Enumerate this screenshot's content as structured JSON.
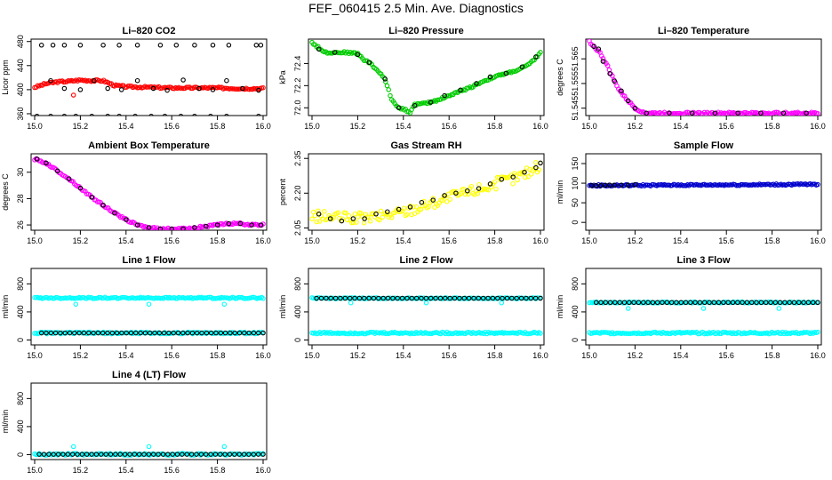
{
  "page_title": "FEF_060415  2.5 Min. Ave. Diagnostics",
  "colors": {
    "red": "#ff0000",
    "green": "#00cc00",
    "magenta": "#ff00ff",
    "yellow": "#ffff00",
    "blue": "#0000cc",
    "cyan": "#00ffff",
    "black": "#000000"
  },
  "chart_data": [
    {
      "id": "co2",
      "type": "scatter",
      "title": "Li–820 CO2",
      "xlabel": "",
      "ylabel": "Licor ppm",
      "xlim": [
        15.0,
        16.0
      ],
      "ylim": [
        357,
        484
      ],
      "xticks": [
        "15.0",
        "15.2",
        "15.4",
        "15.6",
        "15.8",
        "16.0"
      ],
      "yticks": [
        360,
        400,
        440,
        480
      ],
      "series": [
        {
          "name": "ambient",
          "color": "red",
          "symbol": "o",
          "dense": true,
          "x": [
            15.0,
            15.05,
            15.1,
            15.15,
            15.2,
            15.25,
            15.3,
            15.35,
            15.4,
            15.5,
            15.6,
            15.7,
            15.8,
            15.9,
            16.0
          ],
          "y": [
            404,
            410,
            413,
            414,
            416,
            415,
            415,
            407,
            405,
            404,
            403,
            403,
            403,
            402,
            402
          ]
        },
        {
          "name": "ambient outlier",
          "color": "red",
          "symbol": "o",
          "x": [
            15.17
          ],
          "y": [
            391
          ]
        },
        {
          "name": "samples",
          "color": "black",
          "symbol": "o",
          "sparse": true,
          "x": [
            15.07,
            15.13,
            15.2,
            15.26,
            15.32,
            15.38,
            15.45,
            15.52,
            15.58,
            15.65,
            15.72,
            15.78,
            15.84,
            15.91,
            15.98
          ],
          "y": [
            415,
            402,
            400,
            415,
            402,
            400,
            415,
            402,
            399,
            416,
            402,
            400,
            415,
            402,
            399
          ]
        },
        {
          "name": "high cal",
          "color": "black",
          "symbol": "o",
          "x": [
            15.03,
            15.08,
            15.13,
            15.2,
            15.3,
            15.37,
            15.45,
            15.55,
            15.62,
            15.7,
            15.78,
            15.85,
            15.97,
            15.99
          ],
          "y": [
            474,
            474,
            474,
            474,
            474,
            474,
            474,
            474,
            474,
            474,
            474,
            474,
            474,
            474
          ]
        },
        {
          "name": "zero cal",
          "color": "black",
          "symbol": "o",
          "x": [
            15.01,
            15.07,
            15.13,
            15.18,
            15.25,
            15.32,
            15.37,
            15.44,
            15.51,
            15.57,
            15.64,
            15.7,
            15.77,
            15.84,
            15.98
          ],
          "y": [
            356,
            356,
            356,
            356,
            356,
            356,
            356,
            356,
            356,
            356,
            356,
            356,
            356,
            356,
            356
          ]
        }
      ]
    },
    {
      "id": "pressure",
      "type": "scatter",
      "title": "Li–820 Pressure",
      "xlabel": "",
      "ylabel": "kPa",
      "xlim": [
        15.0,
        16.0
      ],
      "ylim": [
        71.93,
        72.62
      ],
      "xticks": [
        "15.0",
        "15.2",
        "15.4",
        "15.6",
        "15.8",
        "16.0"
      ],
      "yticks": [
        "72.0",
        "72.2",
        "72.4"
      ],
      "ytick_values": [
        72.0,
        72.2,
        72.4
      ],
      "series": [
        {
          "name": "pressure",
          "color": "green",
          "symbol": "o",
          "dense": true,
          "x": [
            15.0,
            15.03,
            15.06,
            15.1,
            15.15,
            15.2,
            15.23,
            15.25,
            15.28,
            15.3,
            15.32,
            15.35,
            15.38,
            15.4,
            15.43,
            15.45,
            15.5,
            15.55,
            15.6,
            15.65,
            15.7,
            15.75,
            15.8,
            15.85,
            15.9,
            15.95,
            15.98,
            16.0
          ],
          "y": [
            72.59,
            72.54,
            72.5,
            72.5,
            72.5,
            72.49,
            72.43,
            72.41,
            72.35,
            72.31,
            72.25,
            72.07,
            72.0,
            71.99,
            71.96,
            72.03,
            72.04,
            72.07,
            72.11,
            72.15,
            72.19,
            72.24,
            72.28,
            72.31,
            72.34,
            72.39,
            72.45,
            72.5
          ]
        },
        {
          "name": "samples",
          "color": "black",
          "symbol": "o",
          "sparse": true,
          "x": [
            15.03,
            15.1,
            15.2,
            15.25,
            15.32,
            15.38,
            15.45,
            15.52,
            15.58,
            15.65,
            15.72,
            15.78,
            15.85,
            15.92,
            15.98
          ],
          "y": [
            72.53,
            72.5,
            72.48,
            72.41,
            72.26,
            72.0,
            72.02,
            72.05,
            72.11,
            72.16,
            72.22,
            72.28,
            72.31,
            72.37,
            72.46
          ]
        }
      ]
    },
    {
      "id": "licor_temp",
      "type": "scatter",
      "title": "Li–820 Temperature",
      "xlabel": "",
      "ylabel": "degrees C",
      "xlim": [
        15.0,
        16.0
      ],
      "ylim": [
        51.542,
        51.573
      ],
      "xticks": [
        "15.0",
        "15.2",
        "15.4",
        "15.6",
        "15.8",
        "16.0"
      ],
      "yticks": [
        "51.545",
        "51.555",
        "51.565"
      ],
      "ytick_values": [
        51.545,
        51.555,
        51.565
      ],
      "series": [
        {
          "name": "temperature",
          "color": "magenta",
          "symbol": "o",
          "dense": true,
          "x": [
            15.0,
            15.02,
            15.05,
            15.08,
            15.1,
            15.12,
            15.15,
            15.18,
            15.2,
            15.22,
            15.25,
            15.3,
            15.4,
            15.5,
            15.6,
            15.7,
            15.8,
            15.9,
            16.0
          ],
          "y": [
            51.572,
            51.57,
            51.567,
            51.562,
            51.558,
            51.554,
            51.55,
            51.547,
            51.545,
            51.544,
            51.543,
            51.543,
            51.543,
            51.543,
            51.543,
            51.543,
            51.543,
            51.543,
            51.543
          ]
        },
        {
          "name": "samples",
          "color": "black",
          "symbol": "o",
          "sparse": true,
          "x": [
            15.02,
            15.04,
            15.06,
            15.09,
            15.11,
            15.14,
            15.17,
            15.2,
            15.25,
            15.35,
            15.45,
            15.55,
            15.65,
            15.75,
            15.85,
            15.95
          ],
          "y": [
            51.57,
            51.569,
            51.564,
            51.559,
            51.556,
            51.552,
            51.548,
            51.545,
            51.543,
            51.543,
            51.543,
            51.543,
            51.543,
            51.543,
            51.543,
            51.543
          ]
        }
      ]
    },
    {
      "id": "ambient_box_temp",
      "type": "scatter",
      "title": "Ambient Box Temperature",
      "xlabel": "",
      "ylabel": "degrees C",
      "xlim": [
        15.0,
        16.0
      ],
      "ylim": [
        25.6,
        31.4
      ],
      "xticks": [
        "15.0",
        "15.2",
        "15.4",
        "15.6",
        "15.8",
        "16.0"
      ],
      "yticks": [
        26,
        28,
        30
      ],
      "series": [
        {
          "name": "box temp",
          "color": "magenta",
          "symbol": "o",
          "dense": true,
          "x": [
            15.0,
            15.05,
            15.1,
            15.15,
            15.2,
            15.25,
            15.3,
            15.35,
            15.4,
            15.45,
            15.5,
            15.55,
            15.6,
            15.65,
            15.7,
            15.75,
            15.8,
            15.85,
            15.9,
            15.95,
            16.0
          ],
          "y": [
            31.0,
            30.7,
            30.1,
            29.5,
            28.8,
            28.1,
            27.5,
            26.9,
            26.4,
            26.0,
            25.8,
            25.7,
            25.7,
            25.7,
            25.8,
            25.9,
            26.0,
            26.1,
            26.1,
            26.0,
            26.0
          ]
        },
        {
          "name": "samples",
          "color": "black",
          "symbol": "o",
          "sparse": true,
          "x": [
            15.01,
            15.05,
            15.1,
            15.15,
            15.2,
            15.25,
            15.3,
            15.35,
            15.4,
            15.45,
            15.5,
            15.55,
            15.6,
            15.65,
            15.7,
            15.75,
            15.8,
            15.85,
            15.9,
            15.95,
            15.99
          ],
          "y": [
            31.0,
            30.7,
            30.1,
            29.5,
            28.8,
            28.1,
            27.5,
            26.9,
            26.4,
            26.0,
            25.8,
            25.7,
            25.7,
            25.7,
            25.8,
            25.9,
            26.0,
            26.1,
            26.1,
            26.0,
            26.0
          ]
        }
      ]
    },
    {
      "id": "rh",
      "type": "scatter",
      "title": "Gas Stream RH",
      "xlabel": "",
      "ylabel": "percent",
      "xlim": [
        15.0,
        16.0
      ],
      "ylim": [
        2.04,
        2.37
      ],
      "xticks": [
        "15.0",
        "15.2",
        "15.4",
        "15.6",
        "15.8",
        "16.0"
      ],
      "yticks": [
        "2.05",
        "2.20",
        "2.35"
      ],
      "ytick_values": [
        2.05,
        2.2,
        2.35
      ],
      "series": [
        {
          "name": "rh",
          "color": "yellow",
          "symbol": "o",
          "dense": true,
          "spread": 0.025,
          "x": [
            15.0,
            15.1,
            15.2,
            15.3,
            15.4,
            15.5,
            15.6,
            15.7,
            15.8,
            15.9,
            16.0
          ],
          "y": [
            2.1,
            2.095,
            2.09,
            2.1,
            2.12,
            2.15,
            2.18,
            2.21,
            2.24,
            2.27,
            2.32
          ]
        },
        {
          "name": "samples",
          "color": "black",
          "symbol": "o",
          "sparse": true,
          "x": [
            15.03,
            15.08,
            15.13,
            15.18,
            15.23,
            15.28,
            15.33,
            15.38,
            15.43,
            15.48,
            15.53,
            15.58,
            15.63,
            15.68,
            15.73,
            15.78,
            15.83,
            15.88,
            15.93,
            15.98,
            16.0
          ],
          "y": [
            2.11,
            2.09,
            2.08,
            2.09,
            2.09,
            2.11,
            2.12,
            2.13,
            2.14,
            2.16,
            2.17,
            2.19,
            2.2,
            2.21,
            2.22,
            2.24,
            2.26,
            2.27,
            2.29,
            2.31,
            2.33
          ]
        }
      ]
    },
    {
      "id": "sample_flow",
      "type": "scatter",
      "title": "Sample Flow",
      "xlabel": "",
      "ylabel": "ml/min",
      "xlim": [
        15.0,
        16.0
      ],
      "ylim": [
        -20,
        175
      ],
      "xticks": [
        "15.0",
        "15.2",
        "15.4",
        "15.6",
        "15.8",
        "16.0"
      ],
      "yticks": [
        0,
        50,
        100,
        150
      ],
      "series": [
        {
          "name": "flow",
          "color": "blue",
          "symbol": "o",
          "dense": true,
          "spread": 2,
          "x": [
            15.0,
            16.0
          ],
          "y": [
            94,
            97
          ]
        },
        {
          "name": "samples",
          "color": "black",
          "symbol": "o",
          "sparse": true,
          "x": [
            15.01,
            15.03,
            15.05,
            15.07,
            15.09,
            15.11,
            15.14,
            15.17,
            15.2
          ],
          "y": [
            94,
            94,
            94,
            95,
            95,
            95,
            95,
            95,
            96
          ]
        }
      ]
    },
    {
      "id": "line1",
      "type": "scatter",
      "title": "Line 1 Flow",
      "xlabel": "",
      "ylabel": "ml/min",
      "xlim": [
        15.0,
        16.0
      ],
      "ylim": [
        -70,
        1020
      ],
      "xticks": [
        "15.0",
        "15.2",
        "15.4",
        "15.6",
        "15.8",
        "16.0"
      ],
      "yticks": [
        0,
        400,
        800
      ],
      "series": [
        {
          "name": "high",
          "color": "cyan",
          "symbol": "o",
          "dense": true,
          "spread": 10,
          "x": [
            15.0,
            16.0
          ],
          "y": [
            600,
            600
          ]
        },
        {
          "name": "dips",
          "color": "cyan",
          "symbol": "o",
          "x": [
            15.18,
            15.5,
            15.83
          ],
          "y": [
            510,
            510,
            510
          ]
        },
        {
          "name": "low",
          "color": "cyan",
          "symbol": "o",
          "dense": true,
          "x": [
            15.0,
            16.0
          ],
          "y": [
            100,
            100
          ]
        },
        {
          "name": "samples",
          "color": "black",
          "symbol": "o",
          "row": true,
          "x": [
            15.03,
            16.0
          ],
          "y": [
            100,
            100
          ]
        }
      ]
    },
    {
      "id": "line2",
      "type": "scatter",
      "title": "Line 2 Flow",
      "xlabel": "",
      "ylabel": "ml/min",
      "xlim": [
        15.0,
        16.0
      ],
      "ylim": [
        -70,
        1020
      ],
      "xticks": [
        "15.0",
        "15.2",
        "15.4",
        "15.6",
        "15.8",
        "16.0"
      ],
      "yticks": [
        0,
        400,
        800
      ],
      "series": [
        {
          "name": "high",
          "color": "cyan",
          "symbol": "o",
          "dense": true,
          "spread": 8,
          "x": [
            15.0,
            16.0
          ],
          "y": [
            595,
            595
          ]
        },
        {
          "name": "dips",
          "color": "cyan",
          "symbol": "o",
          "x": [
            15.17,
            15.5,
            15.83
          ],
          "y": [
            530,
            530,
            530
          ]
        },
        {
          "name": "low",
          "color": "cyan",
          "symbol": "o",
          "dense": true,
          "x": [
            15.0,
            16.0
          ],
          "y": [
            100,
            100
          ]
        },
        {
          "name": "samples",
          "color": "black",
          "symbol": "o",
          "row": true,
          "x": [
            15.02,
            16.0
          ],
          "y": [
            595,
            595
          ]
        }
      ]
    },
    {
      "id": "line3",
      "type": "scatter",
      "title": "Line 3 Flow",
      "xlabel": "",
      "ylabel": "ml/min",
      "xlim": [
        15.0,
        16.0
      ],
      "ylim": [
        -70,
        1020
      ],
      "xticks": [
        "15.0",
        "15.2",
        "15.4",
        "15.6",
        "15.8",
        "16.0"
      ],
      "yticks": [
        0,
        400,
        800
      ],
      "series": [
        {
          "name": "high",
          "color": "cyan",
          "symbol": "o",
          "dense": true,
          "spread": 8,
          "x": [
            15.0,
            16.0
          ],
          "y": [
            535,
            535
          ]
        },
        {
          "name": "dips",
          "color": "cyan",
          "symbol": "o",
          "x": [
            15.17,
            15.5,
            15.83
          ],
          "y": [
            450,
            450,
            450
          ]
        },
        {
          "name": "low",
          "color": "cyan",
          "symbol": "o",
          "dense": true,
          "x": [
            15.0,
            16.0
          ],
          "y": [
            100,
            100
          ]
        },
        {
          "name": "samples",
          "color": "black",
          "symbol": "o",
          "row": true,
          "x": [
            15.03,
            16.0
          ],
          "y": [
            535,
            535
          ]
        }
      ]
    },
    {
      "id": "line4",
      "type": "scatter",
      "title": "Line 4 (LT) Flow",
      "xlabel": "",
      "ylabel": "ml/min",
      "xlim": [
        15.0,
        16.0
      ],
      "ylim": [
        -70,
        1020
      ],
      "xticks": [
        "15.0",
        "15.2",
        "15.4",
        "15.6",
        "15.8",
        "16.0"
      ],
      "yticks": [
        0,
        400,
        800
      ],
      "series": [
        {
          "name": "peaks",
          "color": "cyan",
          "symbol": "o",
          "x": [
            15.17,
            15.5,
            15.83
          ],
          "y": [
            115,
            115,
            115
          ]
        },
        {
          "name": "low",
          "color": "cyan",
          "symbol": "o",
          "dense": true,
          "x": [
            15.0,
            16.0
          ],
          "y": [
            5,
            5
          ]
        },
        {
          "name": "samples",
          "color": "black",
          "symbol": "o",
          "row": true,
          "x": [
            15.02,
            16.0
          ],
          "y": [
            5,
            5
          ]
        }
      ]
    }
  ]
}
